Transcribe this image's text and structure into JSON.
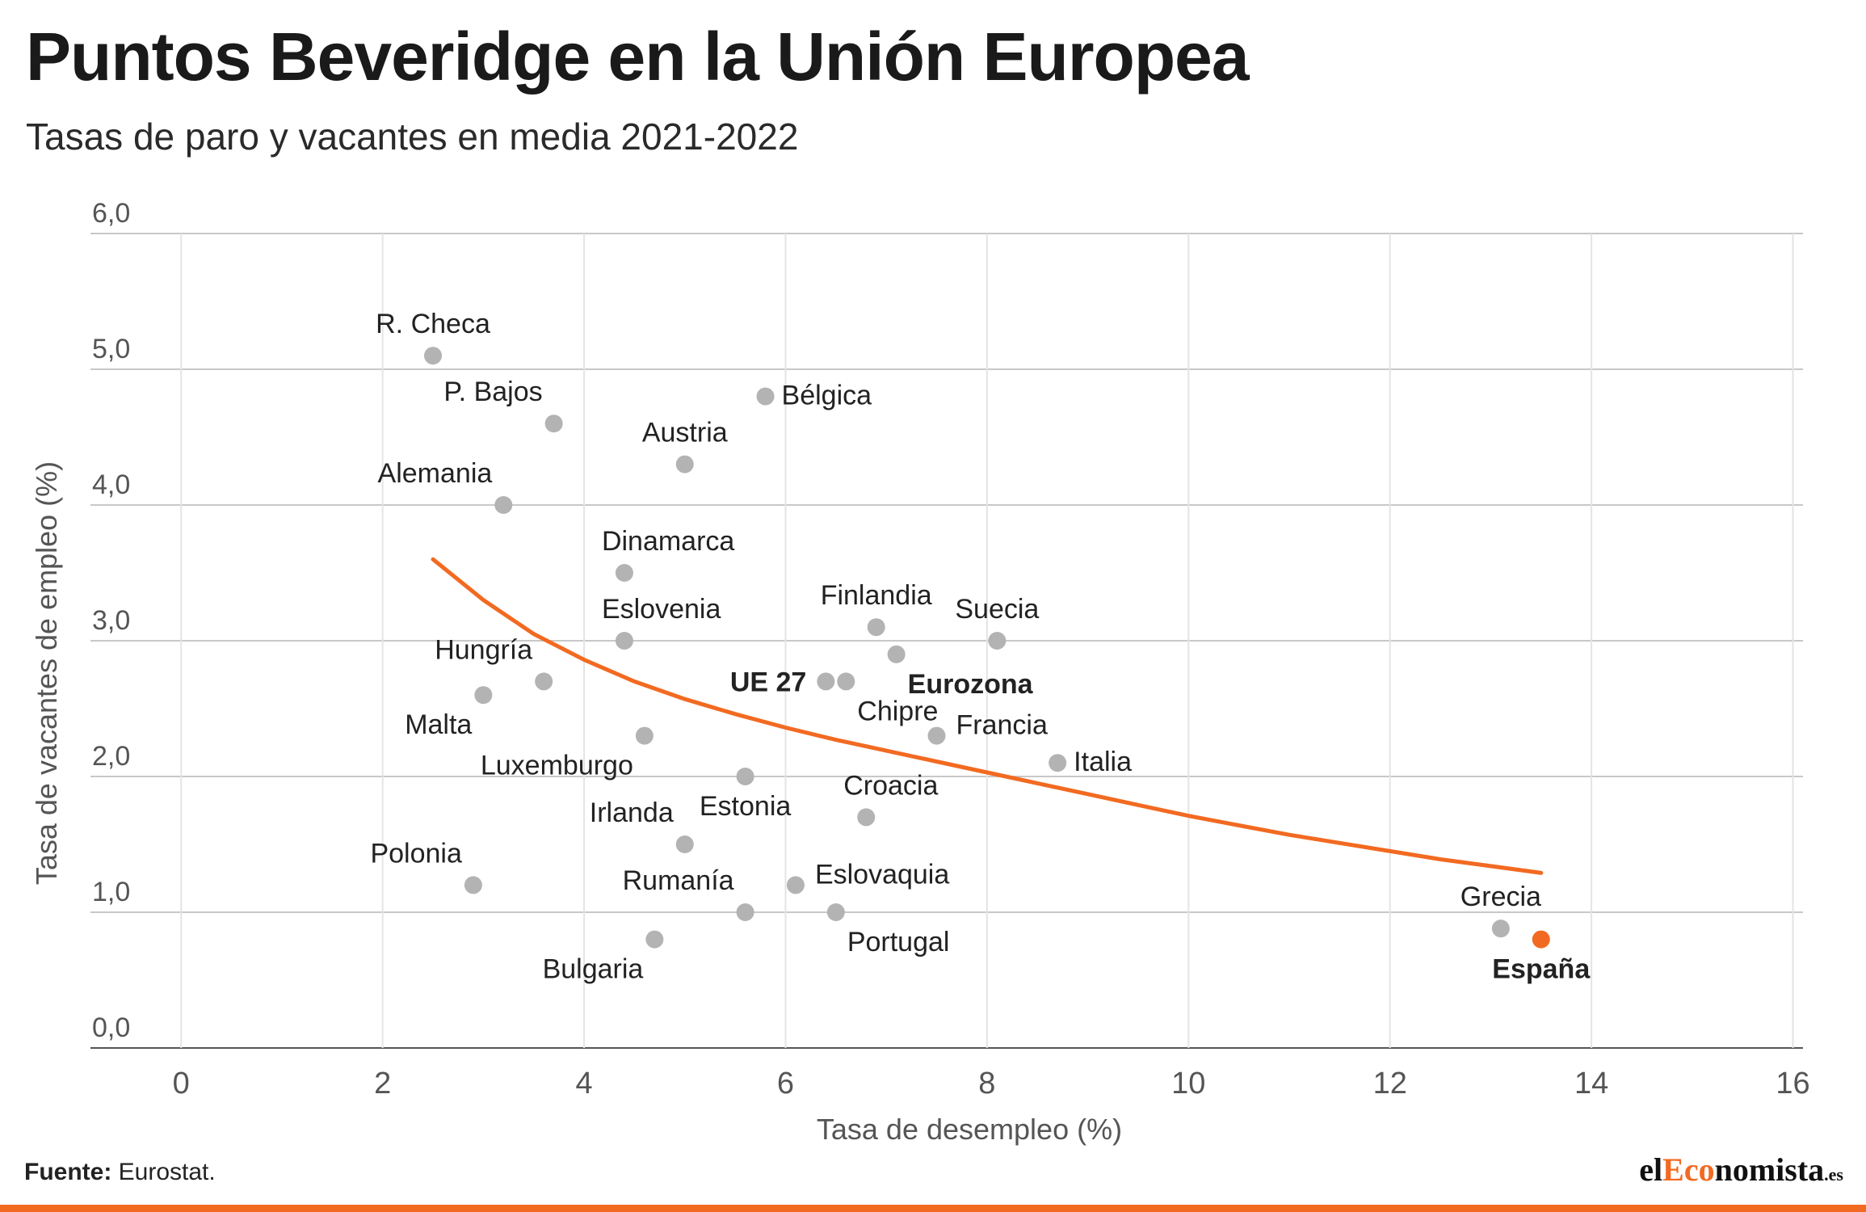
{
  "title": "Puntos Beveridge en la Unión Europea",
  "subtitle": "Tasas de paro y vacantes en media 2021-2022",
  "source_label": "Fuente:",
  "source_text": "Eurostat.",
  "logo": {
    "prefix": "el",
    "mid": "Eco",
    "suffix": "nomista",
    "tld": ".es"
  },
  "colors": {
    "accent": "#f26a21",
    "point": "#b3b3b3",
    "grid": "#cfcfcf",
    "highlight": "#f26a21"
  },
  "chart_data": {
    "type": "scatter",
    "xlabel": "Tasa de desempleo  (%)",
    "ylabel": "Tasa de vacantes de empleo  (%)",
    "xlim": [
      -0.9,
      16.1
    ],
    "ylim": [
      0,
      6
    ],
    "x_ticks": [
      0,
      2,
      4,
      6,
      8,
      10,
      12,
      14,
      16
    ],
    "x_tick_labels": [
      "0",
      "2",
      "4",
      "6",
      "8",
      "10",
      "12",
      "14",
      "16"
    ],
    "y_ticks": [
      0,
      1,
      2,
      3,
      4,
      5,
      6
    ],
    "y_tick_labels": [
      "0,0",
      "1,0",
      "2,0",
      "3,0",
      "4,0",
      "5,0",
      "6,0"
    ],
    "grid": true,
    "points": [
      {
        "name": "R. Checa",
        "x": 2.5,
        "y": 5.1,
        "label_pos": "above"
      },
      {
        "name": "P. Bajos",
        "x": 3.7,
        "y": 4.6,
        "label_pos": "above-left"
      },
      {
        "name": "Bélgica",
        "x": 5.8,
        "y": 4.8,
        "label_pos": "right"
      },
      {
        "name": "Austria",
        "x": 5.0,
        "y": 4.3,
        "label_pos": "above"
      },
      {
        "name": "Alemania",
        "x": 3.2,
        "y": 4.0,
        "label_pos": "above-left"
      },
      {
        "name": "Dinamarca",
        "x": 4.4,
        "y": 3.5,
        "label_pos": "above-right"
      },
      {
        "name": "Eslovenia",
        "x": 4.4,
        "y": 3.0,
        "label_pos": "above-right"
      },
      {
        "name": "Finlandia",
        "x": 6.9,
        "y": 3.1,
        "label_pos": "above"
      },
      {
        "name": "Suecia",
        "x": 8.1,
        "y": 3.0,
        "label_pos": "above"
      },
      {
        "name": "Eurozona",
        "x": 7.1,
        "y": 2.9,
        "label_pos": "below-right",
        "bold": true
      },
      {
        "name": "UE 27",
        "x": 6.4,
        "y": 2.7,
        "label_pos": "left",
        "bold": true
      },
      {
        "name": "Chipre",
        "x": 6.6,
        "y": 2.7,
        "label_pos": "below-right"
      },
      {
        "name": "Hungría",
        "x": 3.6,
        "y": 2.7,
        "label_pos": "above-left"
      },
      {
        "name": "Malta",
        "x": 3.0,
        "y": 2.6,
        "label_pos": "below-left"
      },
      {
        "name": "Francia",
        "x": 7.5,
        "y": 2.3,
        "label_pos": "right-up"
      },
      {
        "name": "Luxemburgo",
        "x": 4.6,
        "y": 2.3,
        "label_pos": "below-left"
      },
      {
        "name": "Italia",
        "x": 8.7,
        "y": 2.1,
        "label_pos": "right"
      },
      {
        "name": "Estonia",
        "x": 5.6,
        "y": 2.0,
        "label_pos": "below"
      },
      {
        "name": "Croacia",
        "x": 6.8,
        "y": 1.7,
        "label_pos": "above-right"
      },
      {
        "name": "Irlanda",
        "x": 5.0,
        "y": 1.5,
        "label_pos": "above-left"
      },
      {
        "name": "Polonia",
        "x": 2.9,
        "y": 1.2,
        "label_pos": "above-left"
      },
      {
        "name": "Eslovaquia",
        "x": 6.1,
        "y": 1.2,
        "label_pos": "right-up"
      },
      {
        "name": "Rumanía",
        "x": 5.6,
        "y": 1.0,
        "label_pos": "above-left"
      },
      {
        "name": "Portugal",
        "x": 6.5,
        "y": 1.0,
        "label_pos": "below-right"
      },
      {
        "name": "Bulgaria",
        "x": 4.7,
        "y": 0.8,
        "label_pos": "below-left"
      },
      {
        "name": "Grecia",
        "x": 13.1,
        "y": 0.88,
        "label_pos": "above"
      },
      {
        "name": "España",
        "x": 13.5,
        "y": 0.8,
        "label_pos": "below",
        "bold": true,
        "highlight": true
      }
    ],
    "trend_line": {
      "x": [
        2.5,
        3.0,
        3.5,
        4.0,
        4.5,
        5.0,
        5.5,
        6.0,
        6.5,
        7.0,
        7.5,
        8.0,
        8.5,
        9.0,
        9.5,
        10.0,
        10.5,
        11.0,
        11.5,
        12.0,
        12.5,
        13.0,
        13.5
      ],
      "y": [
        3.6,
        3.3,
        3.05,
        2.86,
        2.7,
        2.57,
        2.46,
        2.36,
        2.27,
        2.19,
        2.11,
        2.03,
        1.95,
        1.87,
        1.79,
        1.71,
        1.64,
        1.57,
        1.51,
        1.45,
        1.39,
        1.34,
        1.29
      ]
    }
  }
}
